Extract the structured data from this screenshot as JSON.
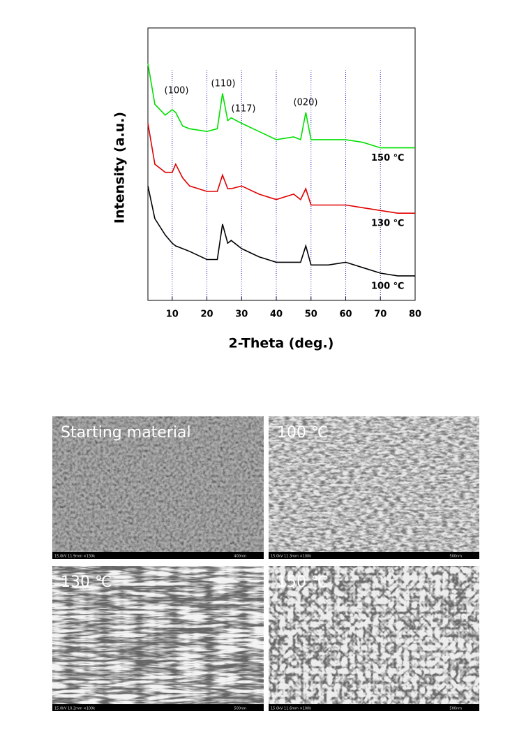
{
  "chart_data": {
    "type": "line",
    "xlabel": "2-Theta (deg.)",
    "ylabel": "Intensity (a.u.)",
    "x": [
      3,
      5,
      8,
      10,
      11,
      13,
      15,
      20,
      23,
      24.5,
      26,
      27,
      30,
      35,
      40,
      45,
      47,
      48.5,
      50,
      55,
      60,
      65,
      70,
      75,
      80
    ],
    "series": [
      {
        "name": "150 ℃",
        "color": "#00e000",
        "values": [
          87,
          72,
          68,
          70,
          69,
          64,
          63,
          62,
          63,
          76,
          66,
          67,
          65,
          62,
          59,
          60,
          59,
          69,
          59,
          59,
          59,
          58,
          56,
          56,
          56
        ]
      },
      {
        "name": "130 ℃",
        "color": "#e00000",
        "values": [
          65,
          50,
          47,
          47,
          50,
          45,
          42,
          40,
          40,
          46,
          41,
          41,
          42,
          39,
          37,
          39,
          37,
          41,
          35,
          35,
          35,
          34,
          33,
          32,
          32
        ]
      },
      {
        "name": "100 ℃",
        "color": "#000000",
        "values": [
          42,
          30,
          24,
          21,
          20,
          19,
          18,
          15,
          15,
          28,
          21,
          22,
          19,
          16,
          14,
          14,
          14,
          20,
          13,
          13,
          14,
          12,
          10,
          9,
          9
        ]
      }
    ],
    "annotations": [
      "(100)",
      "(110)",
      "(117)",
      "(020)"
    ],
    "xlim": [
      3,
      80
    ],
    "ylim": [
      0,
      100
    ],
    "xticks": [
      10,
      20,
      30,
      40,
      50,
      60,
      70,
      80
    ],
    "grid": true,
    "grid_color": "#3030c0"
  },
  "sem_images": [
    {
      "label": "Starting material",
      "info": "15.0kV 11.9mm ×130k",
      "scale": "400nm"
    },
    {
      "label": "100 ℃",
      "info": "15.0kV 11.3mm ×100k",
      "scale": "500nm"
    },
    {
      "label": "130 ℃",
      "info": "15.0kV 10.2mm ×100k",
      "scale": "500nm"
    },
    {
      "label": "150 ℃",
      "info": "15.0kV 11.6mm ×100k",
      "scale": "500nm"
    }
  ]
}
